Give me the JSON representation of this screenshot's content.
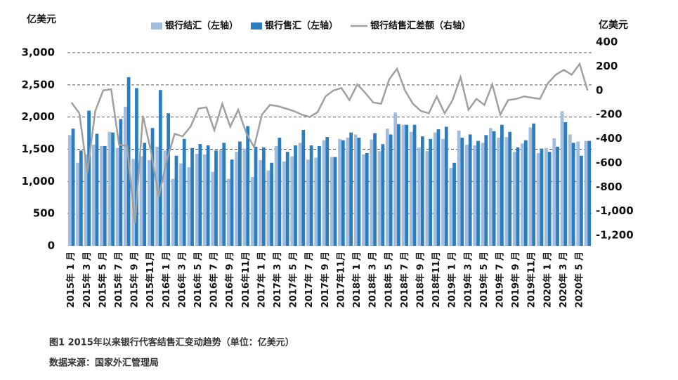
{
  "chart_data": {
    "type": "bar_line",
    "y_unit_label": "亿美元",
    "y2_unit_label": "亿美元",
    "caption": "图1 2015年以来银行代客结售汇变动趋势（单位：亿美元）",
    "source": "数据来源：国家外汇管理局",
    "categories": [
      "2015年 1 月",
      null,
      "2015年 3 月",
      null,
      "2015年 5 月",
      null,
      "2015年 7 月",
      null,
      "2015年 9 月",
      null,
      "2015年11月",
      null,
      "2016年 1 月",
      null,
      "2016年 3 月",
      null,
      "2016年 5 月",
      null,
      "2016年 7 月",
      null,
      "2016年 9 月",
      null,
      "2016年11月",
      null,
      "2017年 1 月",
      null,
      "2017年 3 月",
      null,
      "2017年 5 月",
      null,
      "2017年 7 月",
      null,
      "2017年 9 月",
      null,
      "2017年11月",
      null,
      "2018年 1 月",
      null,
      "2018年 3 月",
      null,
      "2018年 5 月",
      null,
      "2018年 7 月",
      null,
      "2018年 9 月",
      null,
      "2018年11月",
      null,
      "2019年 1 月",
      null,
      "2019年 3 月",
      null,
      "2019年 5 月",
      null,
      "2019年 7 月",
      null,
      "2019年 9 月",
      null,
      "2019年11月",
      null,
      "2020年 1 月",
      null,
      "2020年 3 月",
      null,
      "2020年 5 月",
      null
    ],
    "series": [
      {
        "name": "银行结汇（左轴）",
        "color": "#a3bde0",
        "kind": "bar",
        "values": [
          1720,
          1290,
          1420,
          1570,
          1550,
          1770,
          1520,
          2160,
          1350,
          1390,
          1330,
          1540,
          1480,
          1040,
          1280,
          1220,
          1430,
          1420,
          1150,
          1490,
          1040,
          1460,
          1510,
          1070,
          1330,
          1170,
          1550,
          1310,
          1390,
          1600,
          1340,
          1370,
          1640,
          1380,
          1660,
          1680,
          1730,
          1420,
          1650,
          1470,
          1820,
          2070,
          1880,
          1770,
          1530,
          1470,
          1760,
          1660,
          1210,
          1790,
          1570,
          1560,
          1600,
          1830,
          1680,
          1690,
          1460,
          1590,
          1840,
          1440,
          1520,
          1670,
          2090,
          1730,
          1620,
          1630
        ]
      },
      {
        "name": "银行售汇（左轴）",
        "color": "#2a7dc0",
        "kind": "bar",
        "values": [
          1820,
          1480,
          2100,
          1740,
          1550,
          1760,
          1970,
          2620,
          2450,
          1600,
          1830,
          2420,
          2060,
          1400,
          1660,
          1520,
          1580,
          1560,
          1480,
          1600,
          1340,
          1620,
          1860,
          1540,
          1530,
          1290,
          1680,
          1460,
          1560,
          1800,
          1560,
          1550,
          1690,
          1380,
          1640,
          1760,
          1680,
          1440,
          1750,
          1580,
          1730,
          1890,
          1880,
          1880,
          1700,
          1660,
          1810,
          1850,
          1290,
          1680,
          1730,
          1630,
          1720,
          1780,
          1880,
          1770,
          1530,
          1640,
          1900,
          1510,
          1460,
          1540,
          1920,
          1600,
          1400,
          1630
        ]
      },
      {
        "name": "银行结售汇差额（右轴）",
        "color": "#a0a0a0",
        "kind": "line",
        "axis": "y2",
        "values": [
          -100,
          -190,
          -680,
          -170,
          0,
          10,
          -450,
          -460,
          -1100,
          -210,
          -500,
          -880,
          -580,
          -360,
          -380,
          -300,
          -150,
          -140,
          -330,
          -110,
          -300,
          -160,
          -350,
          -470,
          -200,
          -120,
          -130,
          -150,
          -170,
          -200,
          -220,
          -180,
          -50,
          0,
          20,
          -80,
          50,
          -20,
          -100,
          -110,
          90,
          180,
          0,
          -110,
          -170,
          -190,
          -50,
          -190,
          -80,
          110,
          -160,
          -70,
          -120,
          50,
          -200,
          -80,
          -70,
          -50,
          -60,
          -70,
          60,
          130,
          170,
          130,
          220,
          0
        ]
      }
    ],
    "ylim": [
      0,
      3000
    ],
    "yticks": [
      0,
      500,
      {
        "value": 1000,
        "label": "1,000"
      },
      {
        "value": 1500,
        "label": "1,500"
      },
      {
        "value": 2000,
        "label": "2,000"
      },
      {
        "value": 2500,
        "label": "2,500"
      },
      {
        "value": 3000,
        "label": "3,000"
      }
    ],
    "y2lim": [
      -1200,
      400
    ],
    "y2ticks": [
      400,
      200,
      0,
      -200,
      -400,
      -600,
      -800,
      {
        "value": -1000,
        "label": "-1,000"
      },
      {
        "value": -1200,
        "label": "-1,200"
      }
    ],
    "grid": true
  }
}
